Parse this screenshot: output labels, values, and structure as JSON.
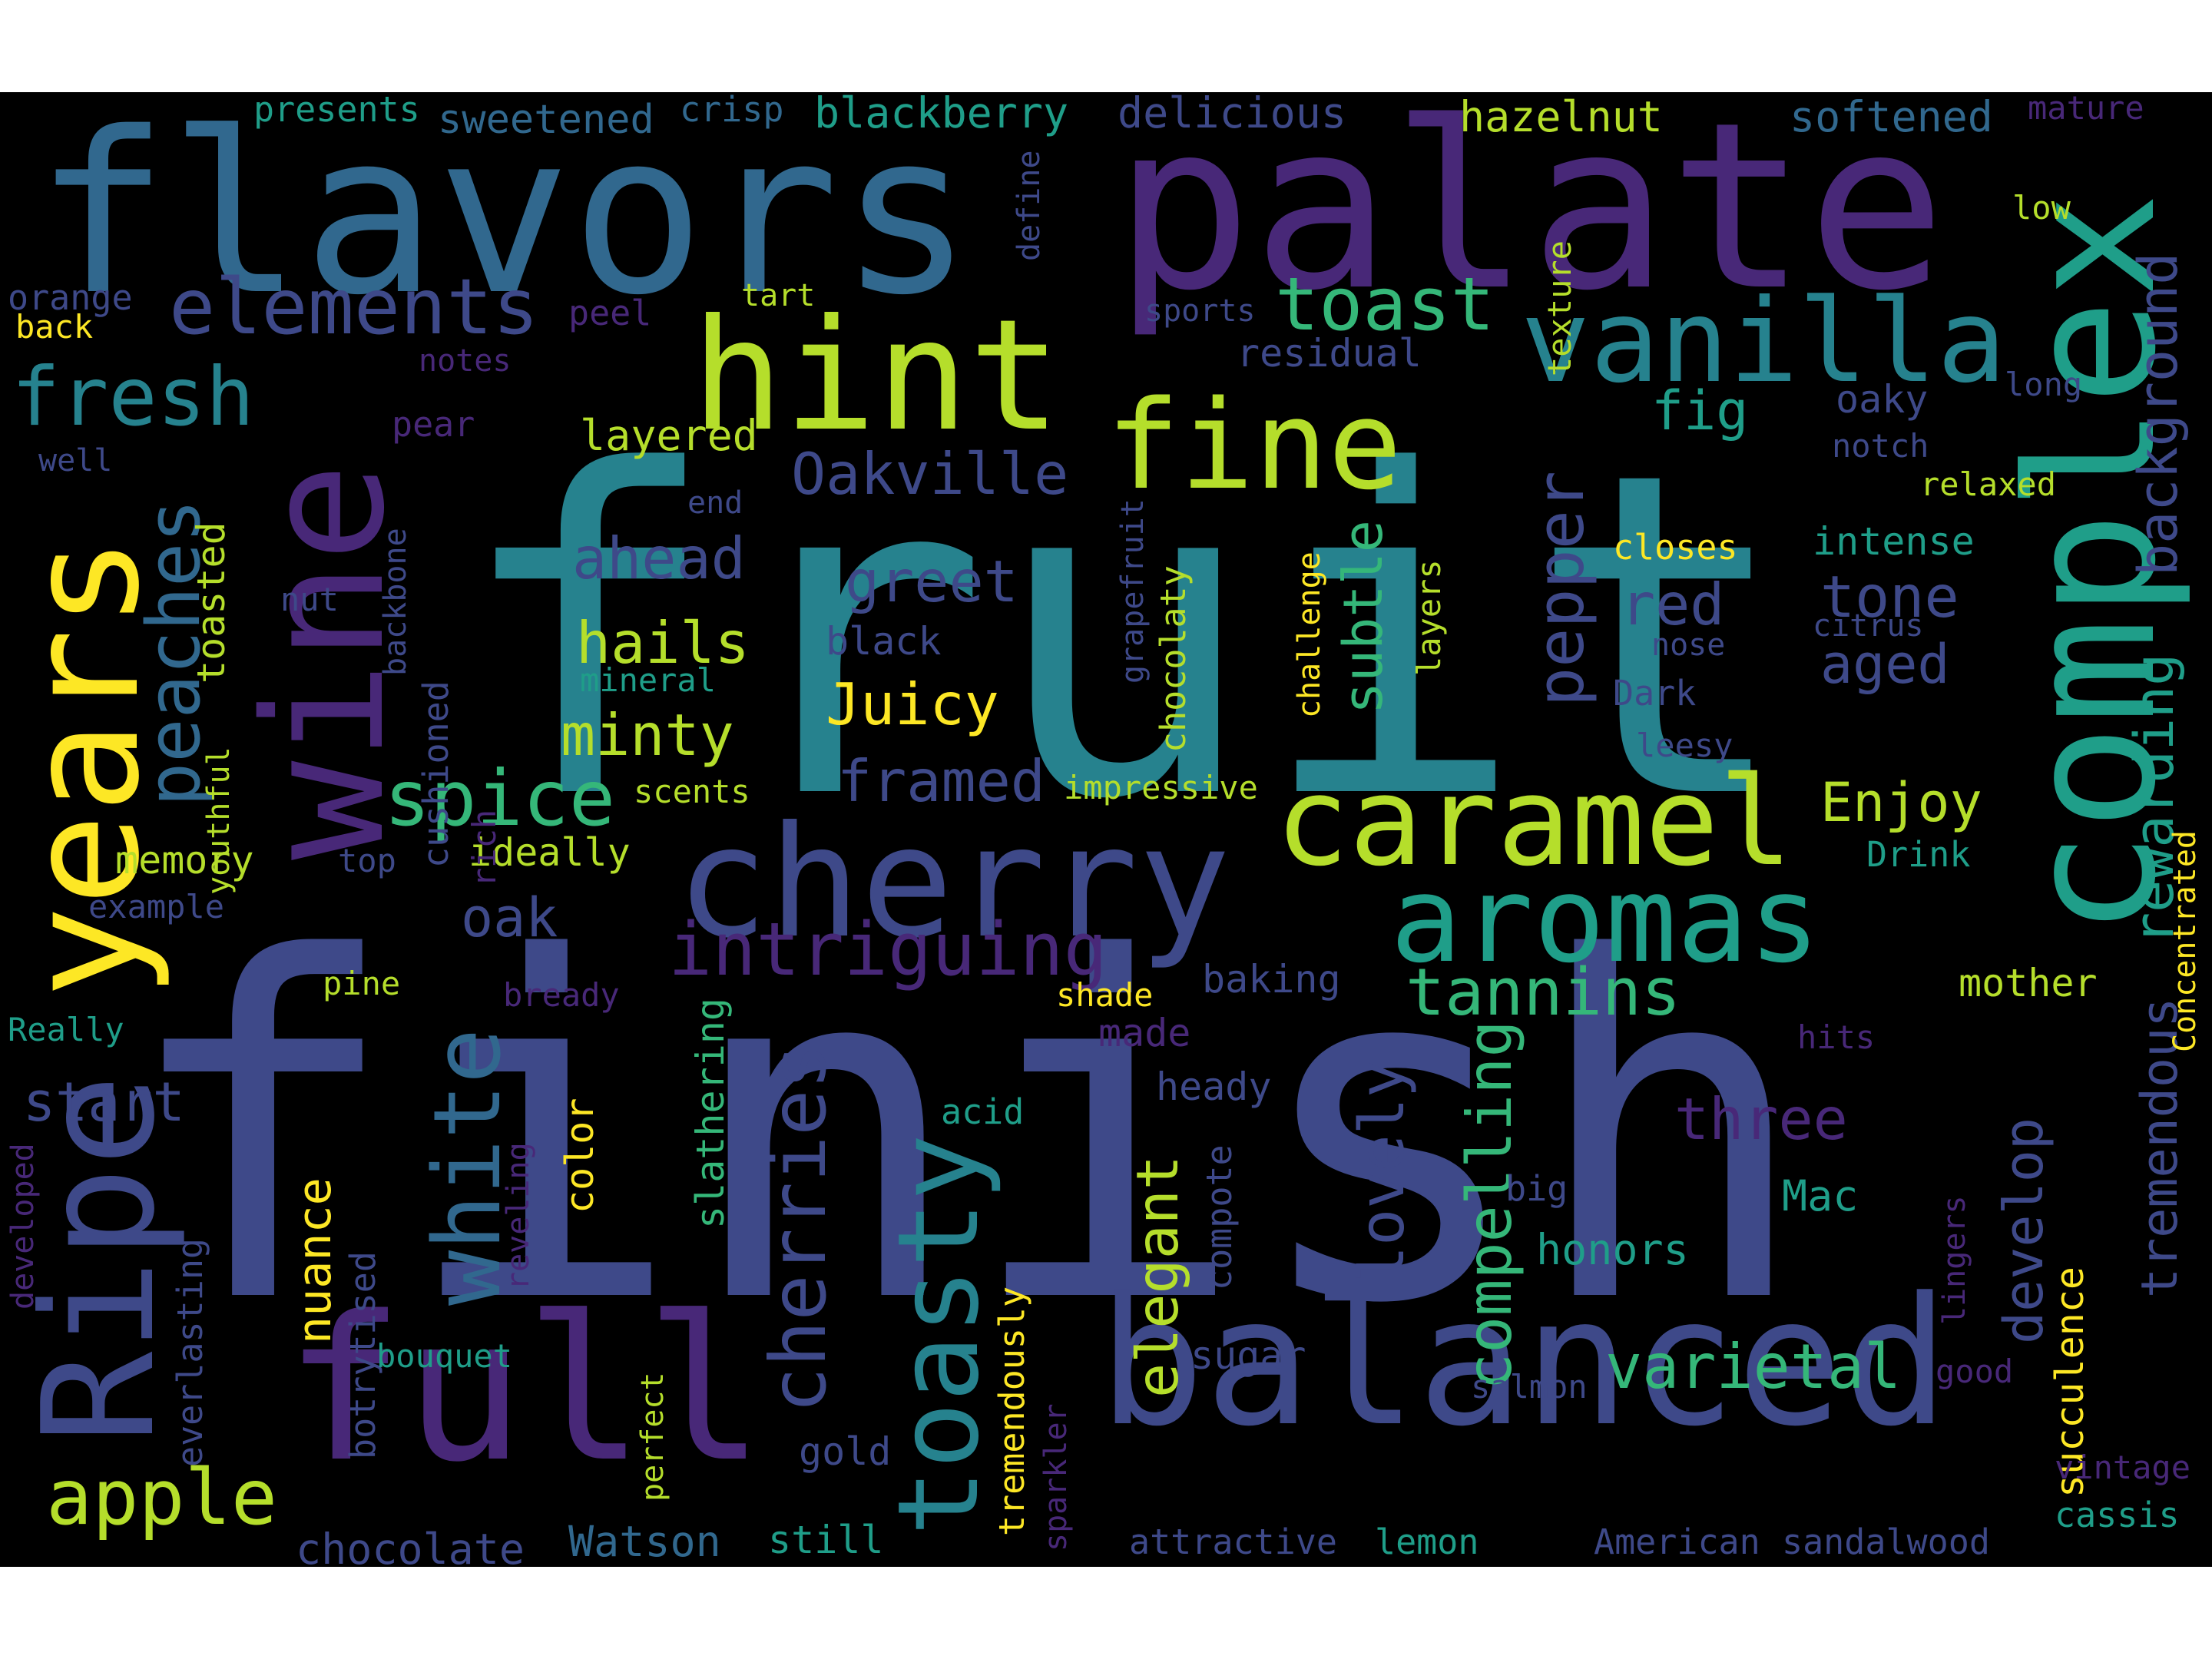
{
  "background": "#000000",
  "palette": {
    "yellow": "#fde725",
    "lime": "#b5de2b",
    "lgreen": "#6ece58",
    "green": "#35b779",
    "teal": "#1f9e89",
    "cyan": "#26828e",
    "blue": "#31688e",
    "slate": "#3e4989",
    "indigo": "#482878",
    "purple": "#440154"
  },
  "words": [
    {
      "text": "finish",
      "c": "slate"
    },
    {
      "text": "fruit",
      "c": "cyan"
    },
    {
      "text": "palate",
      "c": "indigo"
    },
    {
      "text": "flavors",
      "c": "blue"
    },
    {
      "text": "complex",
      "c": "teal"
    },
    {
      "text": "balanced",
      "c": "slate"
    },
    {
      "text": "full",
      "c": "indigo"
    },
    {
      "text": "wine",
      "c": "indigo"
    },
    {
      "text": "years",
      "c": "yellow"
    },
    {
      "text": "Ripe",
      "c": "slate"
    },
    {
      "text": "cherry",
      "c": "slate"
    },
    {
      "text": "hint",
      "c": "lime"
    },
    {
      "text": "fine",
      "c": "lime"
    },
    {
      "text": "vanilla",
      "c": "cyan"
    },
    {
      "text": "caramel",
      "c": "lime"
    },
    {
      "text": "aromas",
      "c": "teal"
    },
    {
      "text": "toasty",
      "c": "cyan"
    },
    {
      "text": "white",
      "c": "blue"
    },
    {
      "text": "cherries",
      "c": "slate"
    },
    {
      "text": "elements",
      "c": "slate"
    },
    {
      "text": "toast",
      "c": "green"
    },
    {
      "text": "fresh",
      "c": "cyan"
    },
    {
      "text": "peaches",
      "c": "blue"
    },
    {
      "text": "apple",
      "c": "lime"
    },
    {
      "text": "spice",
      "c": "green"
    },
    {
      "text": "intriguing",
      "c": "indigo"
    },
    {
      "text": "tannins",
      "c": "green"
    },
    {
      "text": "pepper",
      "c": "slate"
    },
    {
      "text": "background",
      "c": "slate"
    },
    {
      "text": "rewarding",
      "c": "teal"
    },
    {
      "text": "tremendous",
      "c": "slate"
    },
    {
      "text": "varietal",
      "c": "green"
    },
    {
      "text": "lovely",
      "c": "slate"
    },
    {
      "text": "compelling",
      "c": "green"
    },
    {
      "text": "elegant",
      "c": "lime"
    },
    {
      "text": "Oakville",
      "c": "slate"
    },
    {
      "text": "greet",
      "c": "slate"
    },
    {
      "text": "ahead",
      "c": "slate"
    },
    {
      "text": "hails",
      "c": "lime"
    },
    {
      "text": "minty",
      "c": "lime"
    },
    {
      "text": "Juicy",
      "c": "yellow"
    },
    {
      "text": "framed",
      "c": "slate"
    },
    {
      "text": "subtle",
      "c": "green"
    },
    {
      "text": "red",
      "c": "slate"
    },
    {
      "text": "tone",
      "c": "slate"
    },
    {
      "text": "aged",
      "c": "slate"
    },
    {
      "text": "fig",
      "c": "teal"
    },
    {
      "text": "three",
      "c": "indigo"
    },
    {
      "text": "start",
      "c": "slate"
    },
    {
      "text": "nuance",
      "c": "yellow"
    },
    {
      "text": "develop",
      "c": "slate"
    },
    {
      "text": "Enjoy",
      "c": "lime"
    },
    {
      "text": "oak",
      "c": "slate"
    },
    {
      "text": "succulence",
      "c": "yellow"
    },
    {
      "text": "Mac",
      "c": "teal"
    },
    {
      "text": "honors",
      "c": "teal"
    },
    {
      "text": "chocolate",
      "c": "slate"
    },
    {
      "text": "Watson",
      "c": "blue"
    },
    {
      "text": "slathering",
      "c": "green"
    },
    {
      "text": "tremendously",
      "c": "yellow"
    },
    {
      "text": "color",
      "c": "yellow"
    },
    {
      "text": "layered",
      "c": "lime"
    },
    {
      "text": "ideally",
      "c": "lime"
    },
    {
      "text": "memory",
      "c": "lime"
    },
    {
      "text": "toasted",
      "c": "lime"
    },
    {
      "text": "everlasting",
      "c": "slate"
    },
    {
      "text": "botrytised",
      "c": "slate"
    },
    {
      "text": "cushioned",
      "c": "slate"
    },
    {
      "text": "chocolaty",
      "c": "lime"
    },
    {
      "text": "sugar",
      "c": "slate"
    },
    {
      "text": "baking",
      "c": "slate"
    },
    {
      "text": "mother",
      "c": "lime"
    },
    {
      "text": "intense",
      "c": "teal"
    },
    {
      "text": "closes",
      "c": "yellow"
    },
    {
      "text": "Dark",
      "c": "slate"
    },
    {
      "text": "leesy",
      "c": "slate"
    },
    {
      "text": "citrus",
      "c": "slate"
    },
    {
      "text": "nose",
      "c": "slate"
    },
    {
      "text": "oaky",
      "c": "slate"
    },
    {
      "text": "notch",
      "c": "slate"
    },
    {
      "text": "relaxed",
      "c": "lime"
    },
    {
      "text": "long",
      "c": "slate"
    },
    {
      "text": "low",
      "c": "lime"
    },
    {
      "text": "softened",
      "c": "blue"
    },
    {
      "text": "mature",
      "c": "indigo"
    },
    {
      "text": "hazelnut",
      "c": "lime"
    },
    {
      "text": "texture",
      "c": "lime"
    },
    {
      "text": "delicious",
      "c": "slate"
    },
    {
      "text": "blackberry",
      "c": "teal"
    },
    {
      "text": "crisp",
      "c": "blue"
    },
    {
      "text": "sweetened",
      "c": "blue"
    },
    {
      "text": "presents",
      "c": "teal"
    },
    {
      "text": "define",
      "c": "slate"
    },
    {
      "text": "sports",
      "c": "slate"
    },
    {
      "text": "residual",
      "c": "slate"
    },
    {
      "text": "tart",
      "c": "lime"
    },
    {
      "text": "peel",
      "c": "indigo"
    },
    {
      "text": "orange",
      "c": "slate"
    },
    {
      "text": "back",
      "c": "yellow"
    },
    {
      "text": "notes",
      "c": "indigo"
    },
    {
      "text": "pear",
      "c": "indigo"
    },
    {
      "text": "well",
      "c": "slate"
    },
    {
      "text": "end",
      "c": "slate"
    },
    {
      "text": "backbone",
      "c": "slate"
    },
    {
      "text": "nut",
      "c": "slate"
    },
    {
      "text": "black",
      "c": "slate"
    },
    {
      "text": "mineral",
      "c": "teal"
    },
    {
      "text": "grapefruit",
      "c": "slate"
    },
    {
      "text": "challenge",
      "c": "yellow"
    },
    {
      "text": "layers",
      "c": "lime"
    },
    {
      "text": "rich",
      "c": "indigo"
    },
    {
      "text": "youthful",
      "c": "lime"
    },
    {
      "text": "scents",
      "c": "lime"
    },
    {
      "text": "impressive",
      "c": "lime"
    },
    {
      "text": "Drink",
      "c": "teal"
    },
    {
      "text": "Concentrated",
      "c": "yellow"
    },
    {
      "text": "top",
      "c": "slate"
    },
    {
      "text": "example",
      "c": "slate"
    },
    {
      "text": "pine",
      "c": "lime"
    },
    {
      "text": "bready",
      "c": "indigo"
    },
    {
      "text": "Really",
      "c": "teal"
    },
    {
      "text": "shade",
      "c": "yellow"
    },
    {
      "text": "made",
      "c": "indigo"
    },
    {
      "text": "heady",
      "c": "slate"
    },
    {
      "text": "acid",
      "c": "teal"
    },
    {
      "text": "compote",
      "c": "slate"
    },
    {
      "text": "big",
      "c": "slate"
    },
    {
      "text": "hits",
      "c": "indigo"
    },
    {
      "text": "developed",
      "c": "indigo"
    },
    {
      "text": "reveling",
      "c": "indigo"
    },
    {
      "text": "lingers",
      "c": "indigo"
    },
    {
      "text": "bouquet",
      "c": "teal"
    },
    {
      "text": "perfect",
      "c": "lime"
    },
    {
      "text": "sparkler",
      "c": "indigo"
    },
    {
      "text": "salmon",
      "c": "slate"
    },
    {
      "text": "good",
      "c": "indigo"
    },
    {
      "text": "vintage",
      "c": "indigo"
    },
    {
      "text": "gold",
      "c": "slate"
    },
    {
      "text": "still",
      "c": "teal"
    },
    {
      "text": "attractive",
      "c": "slate"
    },
    {
      "text": "lemon",
      "c": "teal"
    },
    {
      "text": "American",
      "c": "slate"
    },
    {
      "text": "sandalwood",
      "c": "slate"
    },
    {
      "text": "cassis",
      "c": "teal"
    }
  ]
}
